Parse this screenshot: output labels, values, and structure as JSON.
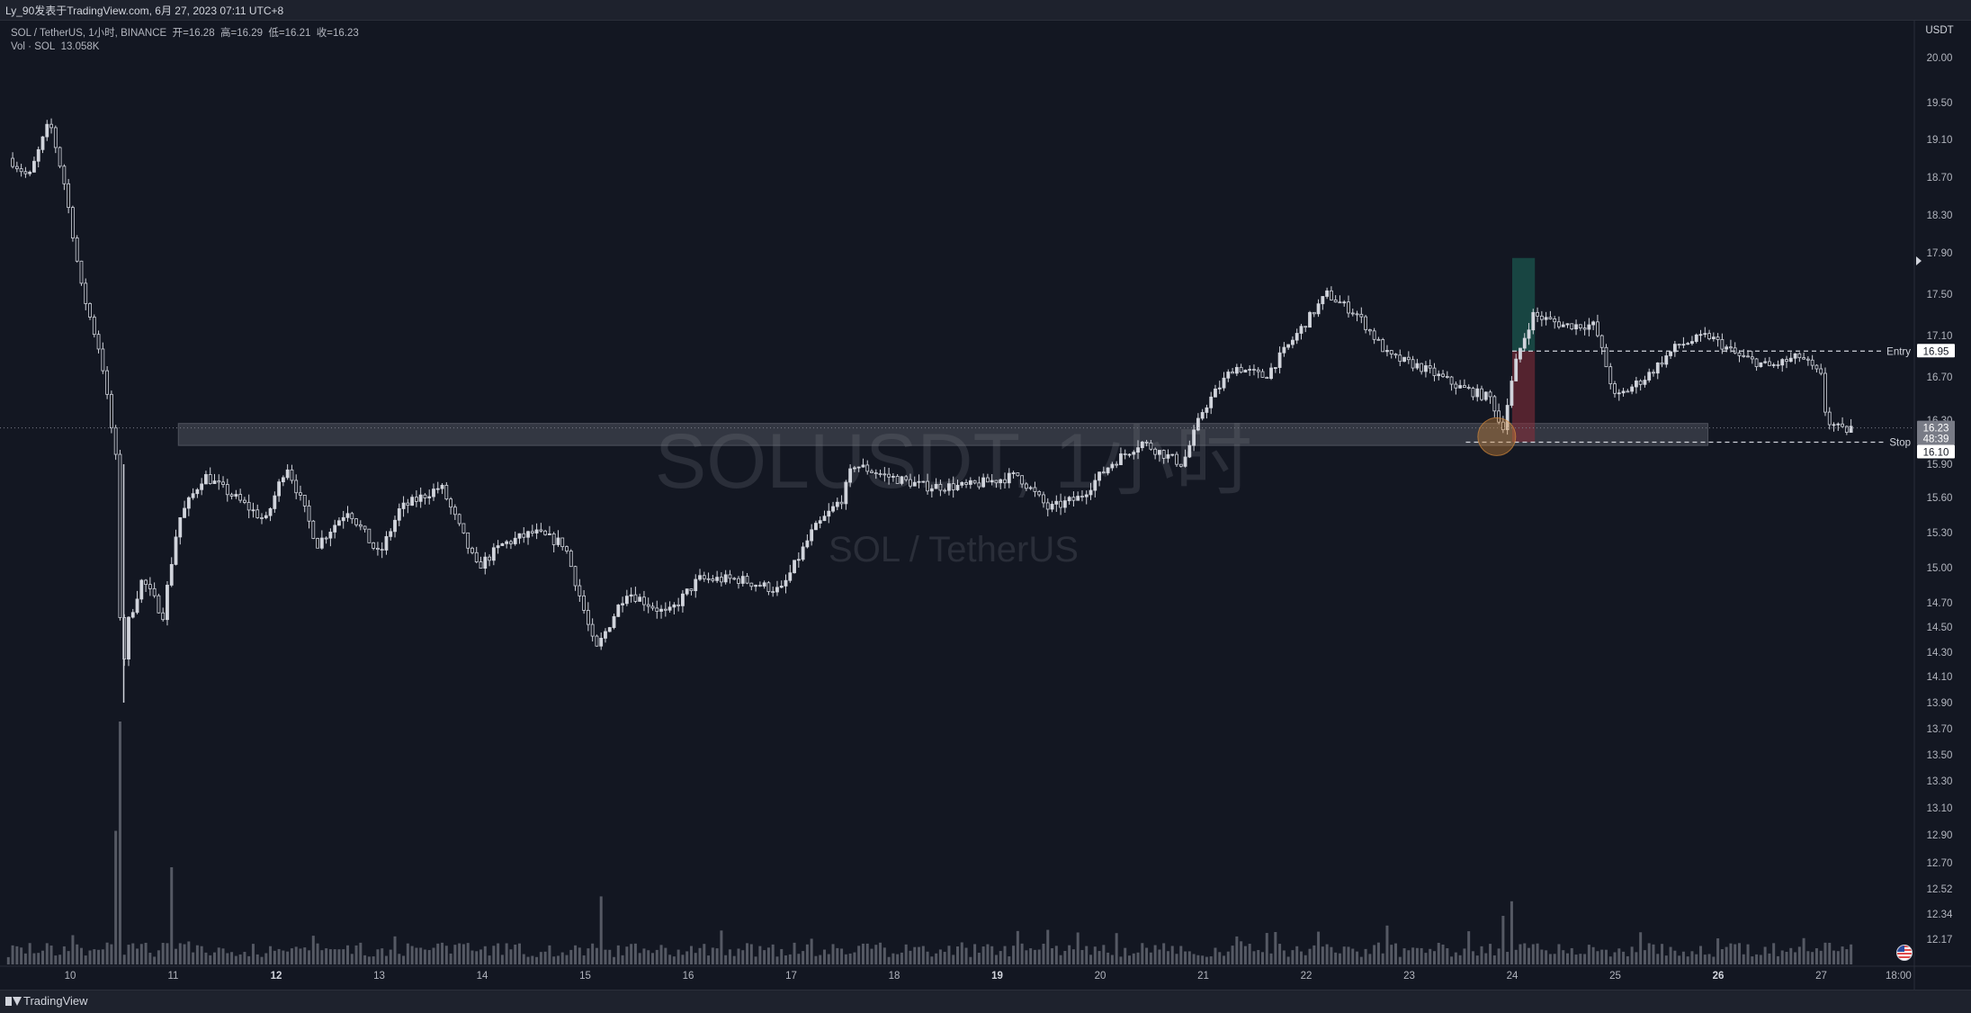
{
  "header": {
    "text": "Ly_90发表于TradingView.com, 6月 27, 2023 07:11 UTC+8"
  },
  "legend": {
    "symbol": "SOL / TetherUS, 1小时, BINANCE",
    "open_label": "开=",
    "open": "16.28",
    "high_label": "高=",
    "high": "16.29",
    "low_label": "低=",
    "low": "16.21",
    "close_label": "收=",
    "close": "16.23",
    "vol_label": "Vol · SOL",
    "vol_value": "13.058K"
  },
  "watermark": {
    "line1": "SOLUSDT, 1小时",
    "line2": "SOL / TetherUS"
  },
  "footer": {
    "brand": "TradingView"
  },
  "colors": {
    "background": "#131722",
    "candle": "#d1d4dc",
    "volume": "#5d606b",
    "zone": "#787b86",
    "target_zone": "#1e6b5c",
    "stop_zone": "#8a2e3b",
    "marker": "#d68a3a"
  },
  "chart_data": {
    "type": "candlestick",
    "currency_label": "USDT",
    "y_ticks": [
      "20.00",
      "19.50",
      "19.10",
      "18.70",
      "18.30",
      "17.90",
      "17.50",
      "17.10",
      "16.70",
      "16.30",
      "15.90",
      "15.60",
      "15.30",
      "15.00",
      "14.70",
      "14.50",
      "14.30",
      "14.10",
      "13.90",
      "13.70",
      "13.50",
      "13.30",
      "13.10",
      "12.90",
      "12.70",
      "12.52",
      "12.34",
      "12.17"
    ],
    "x_ticks": [
      {
        "label": "10",
        "bold": false
      },
      {
        "label": "11",
        "bold": false
      },
      {
        "label": "12",
        "bold": true
      },
      {
        "label": "13",
        "bold": false
      },
      {
        "label": "14",
        "bold": false
      },
      {
        "label": "15",
        "bold": false
      },
      {
        "label": "16",
        "bold": false
      },
      {
        "label": "17",
        "bold": false
      },
      {
        "label": "18",
        "bold": false
      },
      {
        "label": "19",
        "bold": true
      },
      {
        "label": "20",
        "bold": false
      },
      {
        "label": "21",
        "bold": false
      },
      {
        "label": "22",
        "bold": false
      },
      {
        "label": "23",
        "bold": false
      },
      {
        "label": "24",
        "bold": false
      },
      {
        "label": "25",
        "bold": false
      },
      {
        "label": "26",
        "bold": true
      },
      {
        "label": "27",
        "bold": false
      },
      {
        "label": "18:00",
        "bold": false
      }
    ],
    "price_path": [
      [
        9.4,
        18.9
      ],
      [
        9.6,
        18.7
      ],
      [
        9.8,
        19.3
      ],
      [
        9.95,
        18.6
      ],
      [
        10.1,
        17.6
      ],
      [
        10.3,
        16.9
      ],
      [
        10.45,
        15.9
      ],
      [
        10.5,
        14.0
      ],
      [
        10.55,
        14.5
      ],
      [
        10.7,
        14.9
      ],
      [
        10.9,
        14.6
      ],
      [
        11.05,
        15.4
      ],
      [
        11.3,
        15.8
      ],
      [
        11.6,
        15.6
      ],
      [
        11.9,
        15.4
      ],
      [
        12.1,
        15.9
      ],
      [
        12.4,
        15.2
      ],
      [
        12.7,
        15.5
      ],
      [
        13.0,
        15.1
      ],
      [
        13.2,
        15.5
      ],
      [
        13.6,
        15.7
      ],
      [
        13.95,
        15.0
      ],
      [
        14.2,
        15.2
      ],
      [
        14.5,
        15.3
      ],
      [
        14.8,
        15.2
      ],
      [
        15.1,
        14.3
      ],
      [
        15.4,
        14.8
      ],
      [
        15.8,
        14.6
      ],
      [
        16.1,
        14.9
      ],
      [
        16.5,
        14.9
      ],
      [
        16.9,
        14.8
      ],
      [
        17.2,
        15.3
      ],
      [
        17.5,
        15.6
      ],
      [
        17.6,
        15.9
      ],
      [
        17.9,
        15.8
      ],
      [
        18.3,
        15.7
      ],
      [
        18.7,
        15.7
      ],
      [
        19.2,
        15.8
      ],
      [
        19.5,
        15.5
      ],
      [
        19.8,
        15.6
      ],
      [
        20.1,
        15.9
      ],
      [
        20.4,
        16.1
      ],
      [
        20.8,
        15.9
      ],
      [
        21.0,
        16.4
      ],
      [
        21.3,
        16.8
      ],
      [
        21.6,
        16.7
      ],
      [
        21.9,
        17.1
      ],
      [
        22.2,
        17.5
      ],
      [
        22.5,
        17.3
      ],
      [
        22.8,
        16.9
      ],
      [
        23.1,
        16.8
      ],
      [
        23.5,
        16.6
      ],
      [
        23.8,
        16.5
      ],
      [
        23.9,
        16.2
      ],
      [
        24.05,
        16.9
      ],
      [
        24.2,
        17.3
      ],
      [
        24.5,
        17.2
      ],
      [
        24.8,
        17.2
      ],
      [
        25.0,
        16.5
      ],
      [
        25.3,
        16.7
      ],
      [
        25.6,
        17.0
      ],
      [
        25.9,
        17.1
      ],
      [
        26.2,
        16.9
      ],
      [
        26.5,
        16.8
      ],
      [
        26.8,
        16.9
      ],
      [
        27.0,
        16.7
      ],
      [
        27.05,
        16.3
      ],
      [
        27.2,
        16.2
      ],
      [
        27.3,
        16.23
      ]
    ],
    "volume_spikes": [
      {
        "day": 10.5,
        "rel": 1.0
      },
      {
        "day": 10.45,
        "rel": 0.55
      },
      {
        "day": 11.0,
        "rel": 0.4
      },
      {
        "day": 15.15,
        "rel": 0.28
      },
      {
        "day": 24.0,
        "rel": 0.26
      },
      {
        "day": 23.9,
        "rel": 0.2
      },
      {
        "day": 22.8,
        "rel": 0.16
      }
    ],
    "support_zone": {
      "day_start": 11.05,
      "day_end": 25.9,
      "price_top": 16.27,
      "price_bottom": 16.07
    },
    "position": {
      "day_start": 24.0,
      "day_end": 24.22,
      "target_top": 17.85,
      "entry": 16.95,
      "stop": 16.1,
      "entry_label": "Entry",
      "entry_price": "16.95",
      "stop_label": "Stop",
      "stop_price": "16.10"
    },
    "entry_line": {
      "day_start": 24.0,
      "price": 16.95
    },
    "stop_line": {
      "day_start": 23.55,
      "price": 16.1
    },
    "marker": {
      "day": 23.85,
      "price": 16.15
    },
    "current_price": {
      "price": "16.23",
      "countdown": "48:39"
    },
    "dotted_price_line": 16.23
  }
}
